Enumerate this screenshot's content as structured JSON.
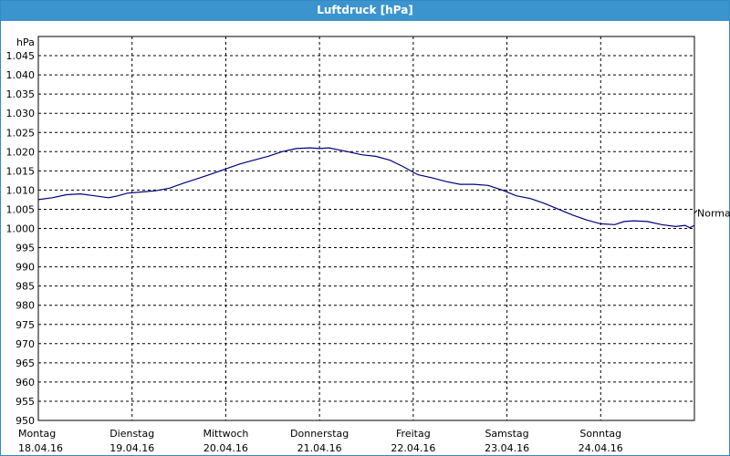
{
  "window": {
    "title": "Luftdruck [hPa]"
  },
  "chart_data": {
    "type": "line",
    "title": "Luftdruck [hPa]",
    "ylabel": "hPa",
    "ylim": [
      950,
      1050
    ],
    "ytick_labels": [
      "950",
      "955",
      "960",
      "965",
      "970",
      "975",
      "980",
      "985",
      "990",
      "995",
      "1.000",
      "1.005",
      "1.010",
      "1.015",
      "1.020",
      "1.025",
      "1.030",
      "1.035",
      "1.040",
      "1.045"
    ],
    "xlim": [
      0,
      7
    ],
    "x_categories": [
      {
        "day": "Montag",
        "date": "18.04.16"
      },
      {
        "day": "Dienstag",
        "date": "19.04.16"
      },
      {
        "day": "Mittwoch",
        "date": "20.04.16"
      },
      {
        "day": "Donnerstag",
        "date": "21.04.16"
      },
      {
        "day": "Freitag",
        "date": "22.04.16"
      },
      {
        "day": "Samstag",
        "date": "23.04.16"
      },
      {
        "day": "Sonntag",
        "date": "24.04.16"
      }
    ],
    "grid": true,
    "reference_line": {
      "label": "Normal",
      "value": 1004
    },
    "series": [
      {
        "color": "#000080",
        "points": [
          [
            0.0,
            1007.5
          ],
          [
            0.15,
            1008.0
          ],
          [
            0.3,
            1008.8
          ],
          [
            0.45,
            1009.0
          ],
          [
            0.6,
            1008.5
          ],
          [
            0.75,
            1008.0
          ],
          [
            0.85,
            1008.5
          ],
          [
            0.95,
            1009.2
          ],
          [
            1.1,
            1009.5
          ],
          [
            1.25,
            1009.8
          ],
          [
            1.4,
            1010.5
          ],
          [
            1.55,
            1011.8
          ],
          [
            1.7,
            1013.0
          ],
          [
            1.85,
            1014.2
          ],
          [
            2.0,
            1015.5
          ],
          [
            2.15,
            1016.8
          ],
          [
            2.3,
            1017.8
          ],
          [
            2.45,
            1018.8
          ],
          [
            2.6,
            1020.0
          ],
          [
            2.75,
            1020.8
          ],
          [
            2.9,
            1021.0
          ],
          [
            3.0,
            1020.8
          ],
          [
            3.1,
            1021.0
          ],
          [
            3.2,
            1020.5
          ],
          [
            3.3,
            1020.0
          ],
          [
            3.45,
            1019.2
          ],
          [
            3.6,
            1018.8
          ],
          [
            3.75,
            1017.8
          ],
          [
            3.9,
            1016.0
          ],
          [
            4.05,
            1014.0
          ],
          [
            4.2,
            1013.2
          ],
          [
            4.35,
            1012.2
          ],
          [
            4.5,
            1011.5
          ],
          [
            4.65,
            1011.5
          ],
          [
            4.8,
            1011.2
          ],
          [
            4.95,
            1010.0
          ],
          [
            5.1,
            1008.5
          ],
          [
            5.25,
            1007.8
          ],
          [
            5.4,
            1006.5
          ],
          [
            5.55,
            1005.0
          ],
          [
            5.7,
            1003.5
          ],
          [
            5.85,
            1002.2
          ],
          [
            6.0,
            1001.2
          ],
          [
            6.15,
            1001.0
          ],
          [
            6.25,
            1001.8
          ],
          [
            6.35,
            1002.0
          ],
          [
            6.5,
            1001.8
          ],
          [
            6.65,
            1001.0
          ],
          [
            6.8,
            1000.5
          ],
          [
            6.9,
            1000.8
          ],
          [
            6.95,
            1000.2
          ],
          [
            7.0,
            1000.8
          ]
        ]
      }
    ]
  }
}
